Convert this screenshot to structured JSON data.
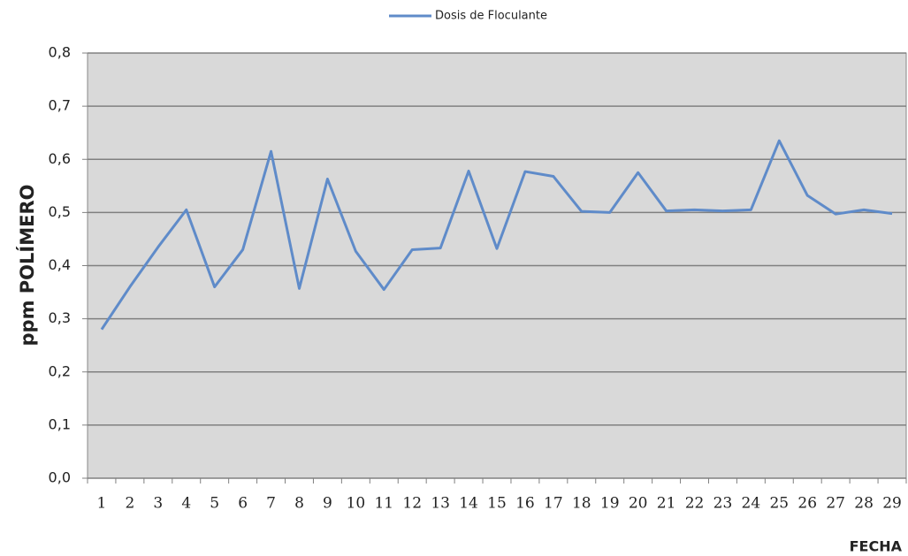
{
  "chart_data": {
    "type": "line",
    "x_label": "FECHA",
    "y_label": "ppm POLÍMERO",
    "categories": [
      "1",
      "2",
      "3",
      "4",
      "5",
      "6",
      "7",
      "8",
      "9",
      "10",
      "11",
      "12",
      "13",
      "14",
      "15",
      "16",
      "17",
      "18",
      "19",
      "20",
      "21",
      "22",
      "23",
      "24",
      "25",
      "26",
      "27",
      "28",
      "29"
    ],
    "series": [
      {
        "name": "Dosis de Floculante",
        "color": "#5f8bc9",
        "values": [
          0.28,
          0.36,
          0.435,
          0.505,
          0.36,
          0.43,
          0.615,
          0.357,
          0.563,
          0.427,
          0.355,
          0.43,
          0.433,
          0.578,
          0.432,
          0.577,
          0.568,
          0.502,
          0.5,
          0.575,
          0.503,
          0.505,
          0.503,
          0.505,
          0.635,
          0.532,
          0.497,
          0.505,
          0.498
        ]
      }
    ],
    "ylim": [
      0,
      0.8
    ],
    "yticks": [
      {
        "value": 0,
        "label": "0,0"
      },
      {
        "value": 0.1,
        "label": "0,1"
      },
      {
        "value": 0.2,
        "label": "0,2"
      },
      {
        "value": 0.3,
        "label": "0,3"
      },
      {
        "value": 0.4,
        "label": "0,4"
      },
      {
        "value": 0.5,
        "label": "0,5"
      },
      {
        "value": 0.6,
        "label": "0,6"
      },
      {
        "value": 0.7,
        "label": "0,7"
      },
      {
        "value": 0.8,
        "label": "0,8"
      }
    ],
    "grid": true,
    "legend": "top"
  }
}
